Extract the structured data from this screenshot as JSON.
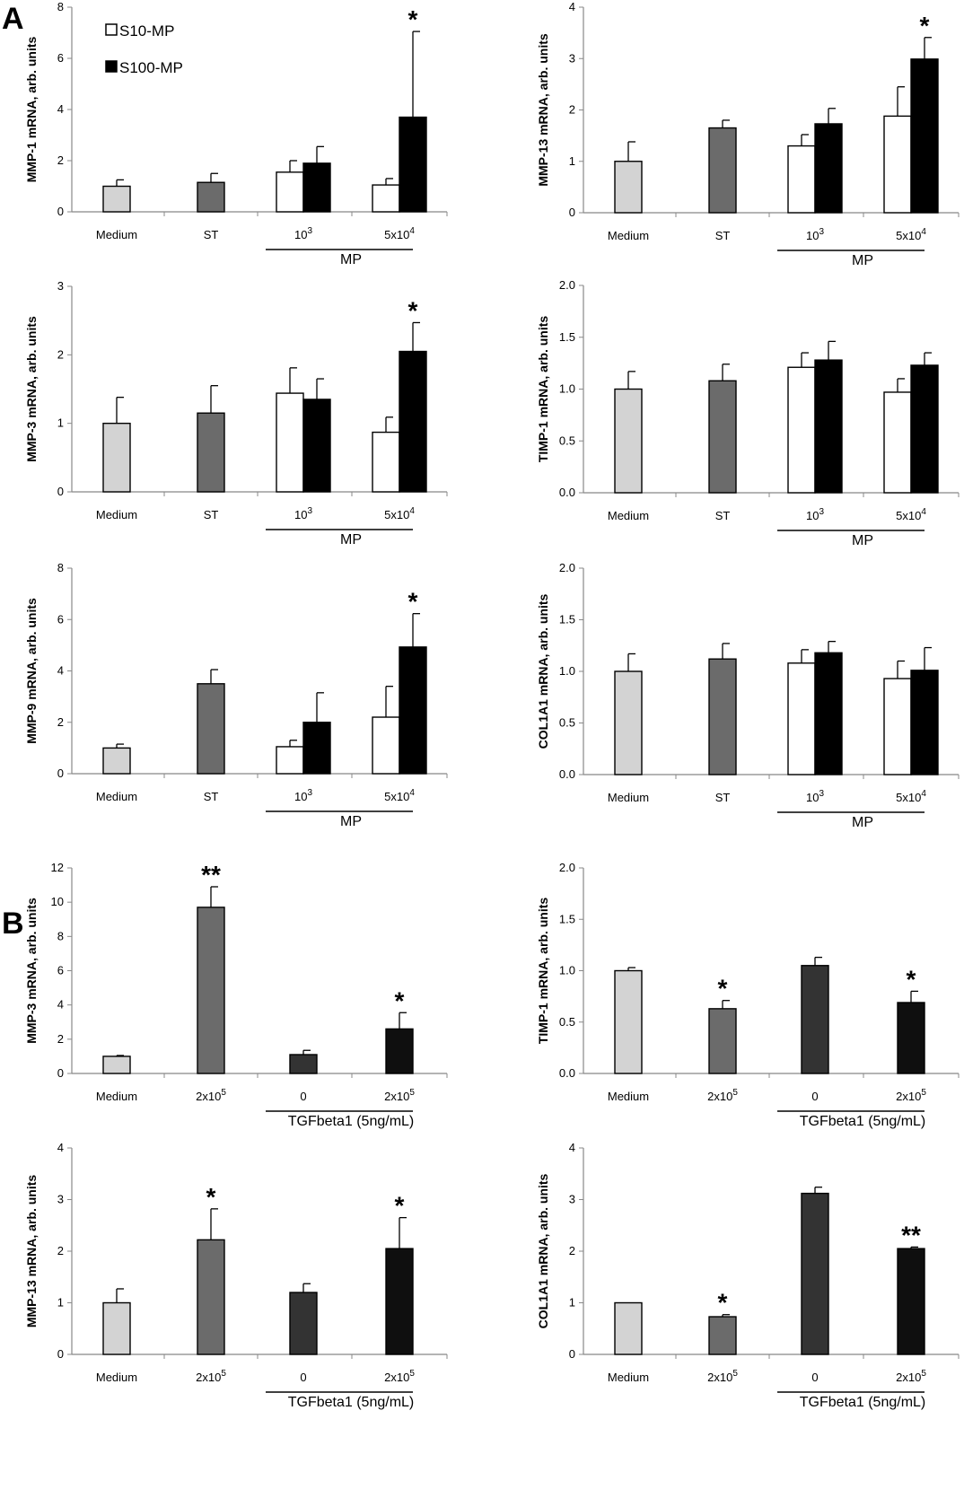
{
  "panel_labels": [
    "A",
    "B"
  ],
  "legend": {
    "open_label": "S10-MP",
    "filled_label": "S100-MP"
  },
  "colors": {
    "medium": "#d3d3d3",
    "st": "#6b6b6b",
    "open": "#ffffff",
    "filled": "#000000",
    "tgf0": "#333333",
    "tgf2": "#0f0f0f",
    "axis": "#888888"
  },
  "chart_data": [
    {
      "id": "a1",
      "type": "bar",
      "ylabel": "MMP-1 mRNA, arb. units",
      "ylim": [
        0,
        8
      ],
      "yticks": [
        "0",
        "2",
        "4",
        "6",
        "8"
      ],
      "categories": [
        "Medium",
        "ST",
        "10^3",
        "5x10^4"
      ],
      "group_label": "MP",
      "bars": [
        {
          "name": "Medium",
          "cat": 0,
          "value": 1.0,
          "err": 0.25,
          "fill": "medium"
        },
        {
          "name": "ST",
          "cat": 1,
          "value": 1.15,
          "err": 0.35,
          "fill": "st"
        },
        {
          "name": "S10-MP",
          "cat": 2,
          "value": 1.55,
          "err": 0.45,
          "fill": "open"
        },
        {
          "name": "S100-MP",
          "cat": 2,
          "value": 1.9,
          "err": 0.65,
          "fill": "filled"
        },
        {
          "name": "S10-MP",
          "cat": 3,
          "value": 1.05,
          "err": 0.25,
          "fill": "open"
        },
        {
          "name": "S100-MP",
          "cat": 3,
          "value": 3.7,
          "err": 3.35,
          "fill": "filled",
          "sig": "*"
        }
      ]
    },
    {
      "id": "a2",
      "type": "bar",
      "ylabel": "MMP-13 mRNA, arb. units",
      "ylim": [
        0,
        4
      ],
      "yticks": [
        "0",
        "1",
        "2",
        "3",
        "4"
      ],
      "categories": [
        "Medium",
        "ST",
        "10^3",
        "5x10^4"
      ],
      "group_label": "MP",
      "bars": [
        {
          "name": "Medium",
          "cat": 0,
          "value": 1.0,
          "err": 0.38,
          "fill": "medium"
        },
        {
          "name": "ST",
          "cat": 1,
          "value": 1.65,
          "err": 0.15,
          "fill": "st"
        },
        {
          "name": "S10-MP",
          "cat": 2,
          "value": 1.3,
          "err": 0.22,
          "fill": "open"
        },
        {
          "name": "S100-MP",
          "cat": 2,
          "value": 1.73,
          "err": 0.3,
          "fill": "filled"
        },
        {
          "name": "S10-MP",
          "cat": 3,
          "value": 1.88,
          "err": 0.57,
          "fill": "open"
        },
        {
          "name": "S100-MP",
          "cat": 3,
          "value": 2.99,
          "err": 0.42,
          "fill": "filled",
          "sig": "*"
        }
      ]
    },
    {
      "id": "a3",
      "type": "bar",
      "ylabel": "MMP-3 mRNA, arb. units",
      "ylim": [
        0,
        3
      ],
      "yticks": [
        "0",
        "1",
        "2",
        "3"
      ],
      "categories": [
        "Medium",
        "ST",
        "10^3",
        "5x10^4"
      ],
      "group_label": "MP",
      "bars": [
        {
          "name": "Medium",
          "cat": 0,
          "value": 1.0,
          "err": 0.38,
          "fill": "medium"
        },
        {
          "name": "ST",
          "cat": 1,
          "value": 1.15,
          "err": 0.4,
          "fill": "st"
        },
        {
          "name": "S10-MP",
          "cat": 2,
          "value": 1.44,
          "err": 0.37,
          "fill": "open"
        },
        {
          "name": "S100-MP",
          "cat": 2,
          "value": 1.35,
          "err": 0.3,
          "fill": "filled"
        },
        {
          "name": "S10-MP",
          "cat": 3,
          "value": 0.87,
          "err": 0.22,
          "fill": "open"
        },
        {
          "name": "S100-MP",
          "cat": 3,
          "value": 2.05,
          "err": 0.42,
          "fill": "filled",
          "sig": "*"
        }
      ]
    },
    {
      "id": "a4",
      "type": "bar",
      "ylabel": "TIMP-1 mRNA, arb. units",
      "ylim": [
        0,
        2
      ],
      "yticks": [
        "0.0",
        "0.5",
        "1.0",
        "1.5",
        "2.0"
      ],
      "categories": [
        "Medium",
        "ST",
        "10^3",
        "5x10^4"
      ],
      "group_label": "MP",
      "bars": [
        {
          "name": "Medium",
          "cat": 0,
          "value": 1.0,
          "err": 0.17,
          "fill": "medium"
        },
        {
          "name": "ST",
          "cat": 1,
          "value": 1.08,
          "err": 0.16,
          "fill": "st"
        },
        {
          "name": "S10-MP",
          "cat": 2,
          "value": 1.21,
          "err": 0.14,
          "fill": "open"
        },
        {
          "name": "S100-MP",
          "cat": 2,
          "value": 1.28,
          "err": 0.18,
          "fill": "filled"
        },
        {
          "name": "S10-MP",
          "cat": 3,
          "value": 0.97,
          "err": 0.13,
          "fill": "open"
        },
        {
          "name": "S100-MP",
          "cat": 3,
          "value": 1.23,
          "err": 0.12,
          "fill": "filled"
        }
      ]
    },
    {
      "id": "a5",
      "type": "bar",
      "ylabel": "MMP-9 mRNA, arb. units",
      "ylim": [
        0,
        8
      ],
      "yticks": [
        "0",
        "2",
        "4",
        "6",
        "8"
      ],
      "categories": [
        "Medium",
        "ST",
        "10^3",
        "5x10^4"
      ],
      "group_label": "MP",
      "bars": [
        {
          "name": "Medium",
          "cat": 0,
          "value": 1.0,
          "err": 0.15,
          "fill": "medium"
        },
        {
          "name": "ST",
          "cat": 1,
          "value": 3.5,
          "err": 0.55,
          "fill": "st"
        },
        {
          "name": "S10-MP",
          "cat": 2,
          "value": 1.05,
          "err": 0.25,
          "fill": "open"
        },
        {
          "name": "S100-MP",
          "cat": 2,
          "value": 2.0,
          "err": 1.15,
          "fill": "filled"
        },
        {
          "name": "S10-MP",
          "cat": 3,
          "value": 2.2,
          "err": 1.2,
          "fill": "open"
        },
        {
          "name": "S100-MP",
          "cat": 3,
          "value": 4.93,
          "err": 1.3,
          "fill": "filled",
          "sig": "*"
        }
      ]
    },
    {
      "id": "a6",
      "type": "bar",
      "ylabel": "COL1A1 mRNA, arb. units",
      "ylim": [
        0,
        2
      ],
      "yticks": [
        "0.0",
        "0.5",
        "1.0",
        "1.5",
        "2.0"
      ],
      "categories": [
        "Medium",
        "ST",
        "10^3",
        "5x10^4"
      ],
      "group_label": "MP",
      "bars": [
        {
          "name": "Medium",
          "cat": 0,
          "value": 1.0,
          "err": 0.17,
          "fill": "medium"
        },
        {
          "name": "ST",
          "cat": 1,
          "value": 1.12,
          "err": 0.15,
          "fill": "st"
        },
        {
          "name": "S10-MP",
          "cat": 2,
          "value": 1.08,
          "err": 0.13,
          "fill": "open"
        },
        {
          "name": "S100-MP",
          "cat": 2,
          "value": 1.18,
          "err": 0.11,
          "fill": "filled"
        },
        {
          "name": "S10-MP",
          "cat": 3,
          "value": 0.93,
          "err": 0.17,
          "fill": "open"
        },
        {
          "name": "S100-MP",
          "cat": 3,
          "value": 1.01,
          "err": 0.22,
          "fill": "filled"
        }
      ]
    },
    {
      "id": "b1",
      "type": "bar",
      "ylabel": "MMP-3 mRNA, arb. units",
      "ylim": [
        0,
        12
      ],
      "yticks": [
        "0",
        "2",
        "4",
        "6",
        "8",
        "10",
        "12"
      ],
      "categories": [
        "Medium",
        "2x10^5",
        "0",
        "2x10^5"
      ],
      "group_label": "TGFbeta1 (5ng/mL)",
      "bars": [
        {
          "name": "Medium",
          "cat": 0,
          "value": 1.0,
          "err": 0.05,
          "fill": "medium"
        },
        {
          "name": "2x10^5",
          "cat": 1,
          "value": 9.7,
          "err": 1.2,
          "fill": "st",
          "sig": "**"
        },
        {
          "name": "0",
          "cat": 2,
          "value": 1.1,
          "err": 0.25,
          "fill": "tgf0"
        },
        {
          "name": "2x10^5",
          "cat": 3,
          "value": 2.6,
          "err": 0.95,
          "fill": "tgf2",
          "sig": "*"
        }
      ]
    },
    {
      "id": "b2",
      "type": "bar",
      "ylabel": "TIMP-1 mRNA, arb. units",
      "ylim": [
        0,
        2
      ],
      "yticks": [
        "0.0",
        "0.5",
        "1.0",
        "1.5",
        "2.0"
      ],
      "categories": [
        "Medium",
        "2x10^5",
        "0",
        "2x10^5"
      ],
      "group_label": "TGFbeta1 (5ng/mL)",
      "bars": [
        {
          "name": "Medium",
          "cat": 0,
          "value": 1.0,
          "err": 0.03,
          "fill": "medium"
        },
        {
          "name": "2x10^5",
          "cat": 1,
          "value": 0.63,
          "err": 0.08,
          "fill": "st",
          "sig": "*"
        },
        {
          "name": "0",
          "cat": 2,
          "value": 1.05,
          "err": 0.08,
          "fill": "tgf0"
        },
        {
          "name": "2x10^5",
          "cat": 3,
          "value": 0.69,
          "err": 0.11,
          "fill": "tgf2",
          "sig": "*"
        }
      ]
    },
    {
      "id": "b3",
      "type": "bar",
      "ylabel": "MMP-13 mRNA, arb. units",
      "ylim": [
        0,
        4
      ],
      "yticks": [
        "0",
        "1",
        "2",
        "3",
        "4"
      ],
      "categories": [
        "Medium",
        "2x10^5",
        "0",
        "2x10^5"
      ],
      "group_label": "TGFbeta1 (5ng/mL)",
      "bars": [
        {
          "name": "Medium",
          "cat": 0,
          "value": 1.0,
          "err": 0.27,
          "fill": "medium"
        },
        {
          "name": "2x10^5",
          "cat": 1,
          "value": 2.22,
          "err": 0.6,
          "fill": "st",
          "sig": "*"
        },
        {
          "name": "0",
          "cat": 2,
          "value": 1.2,
          "err": 0.17,
          "fill": "tgf0"
        },
        {
          "name": "2x10^5",
          "cat": 3,
          "value": 2.05,
          "err": 0.6,
          "fill": "tgf2",
          "sig": "*"
        }
      ]
    },
    {
      "id": "b4",
      "type": "bar",
      "ylabel": "COL1A1 mRNA, arb. units",
      "ylim": [
        0,
        4
      ],
      "yticks": [
        "0",
        "1",
        "2",
        "3",
        "4"
      ],
      "categories": [
        "Medium",
        "2x10^5",
        "0",
        "2x10^5"
      ],
      "group_label": "TGFbeta1 (5ng/mL)",
      "bars": [
        {
          "name": "Medium",
          "cat": 0,
          "value": 1.0,
          "err": 0.0,
          "fill": "medium"
        },
        {
          "name": "2x10^5",
          "cat": 1,
          "value": 0.73,
          "err": 0.04,
          "fill": "st",
          "sig": "*"
        },
        {
          "name": "0",
          "cat": 2,
          "value": 3.12,
          "err": 0.12,
          "fill": "tgf0"
        },
        {
          "name": "2x10^5",
          "cat": 3,
          "value": 2.05,
          "err": 0.03,
          "fill": "tgf2",
          "sig": "**"
        }
      ]
    }
  ]
}
